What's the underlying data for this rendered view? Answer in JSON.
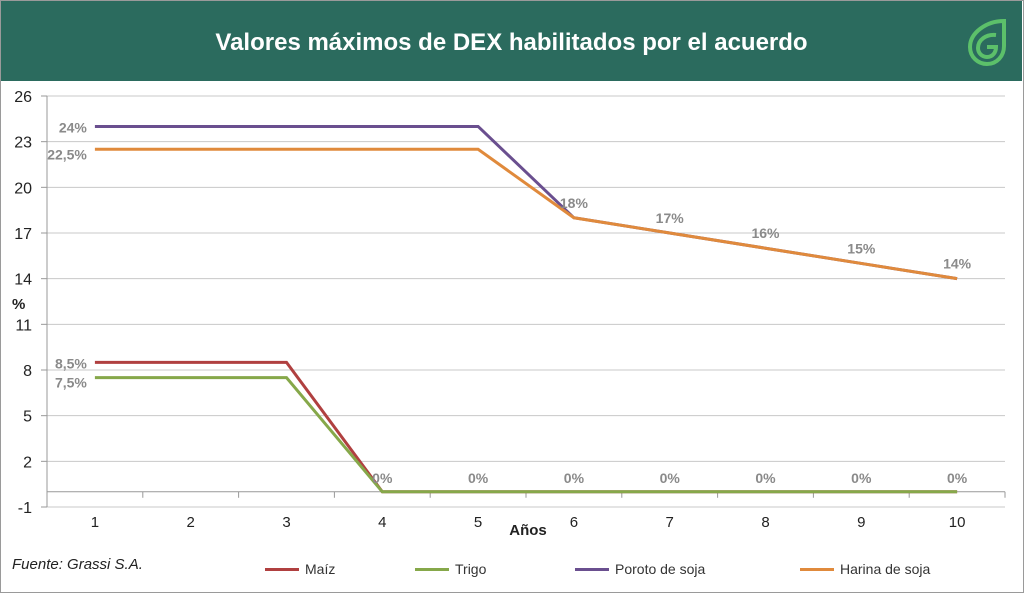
{
  "header": {
    "title": "Valores máximos de DEX habilitados por el acuerdo",
    "logo_icon": "leaf-g-logo"
  },
  "source": "Fuente: Grassi S.A.",
  "chart_data": {
    "type": "line",
    "title": "Valores máximos de DEX habilitados por el acuerdo",
    "xlabel": "Años",
    "ylabel": "%",
    "categories": [
      "1",
      "2",
      "3",
      "4",
      "5",
      "6",
      "7",
      "8",
      "9",
      "10"
    ],
    "ylim": [
      -1,
      26
    ],
    "yticks": [
      "26",
      "23",
      "20",
      "17",
      "14",
      "11",
      "8",
      "5",
      "2",
      "-1"
    ],
    "grid": true,
    "legend_position": "bottom",
    "series": [
      {
        "name": "Maíz",
        "color": "#b04040",
        "values": [
          8.5,
          8.5,
          8.5,
          0,
          0,
          0,
          0,
          0,
          0,
          0
        ]
      },
      {
        "name": "Trigo",
        "color": "#86a84a",
        "values": [
          7.5,
          7.5,
          7.5,
          0,
          0,
          0,
          0,
          0,
          0,
          0
        ]
      },
      {
        "name": "Poroto de soja",
        "color": "#6a4f8f",
        "values": [
          24,
          24,
          24,
          24,
          24,
          18,
          17,
          16,
          15,
          14
        ]
      },
      {
        "name": "Harina de soja",
        "color": "#e08a3c",
        "values": [
          22.5,
          22.5,
          22.5,
          22.5,
          22.5,
          18,
          17,
          16,
          15,
          14
        ]
      }
    ],
    "data_labels": [
      {
        "x": "1",
        "y": 24,
        "text": "24%"
      },
      {
        "x": "1",
        "y": 22.5,
        "text": "22,5%"
      },
      {
        "x": "1",
        "y": 8.5,
        "text": "8,5%"
      },
      {
        "x": "1",
        "y": 7.5,
        "text": "7,5%"
      },
      {
        "x": "6",
        "y": 18,
        "text": "18%"
      },
      {
        "x": "7",
        "y": 17,
        "text": "17%"
      },
      {
        "x": "8",
        "y": 16,
        "text": "16%"
      },
      {
        "x": "9",
        "y": 15,
        "text": "15%"
      },
      {
        "x": "10",
        "y": 14,
        "text": "14%"
      },
      {
        "x": "4",
        "y": 0,
        "text": "0%"
      },
      {
        "x": "5",
        "y": 0,
        "text": "0%"
      },
      {
        "x": "6",
        "y": 0,
        "text": "0%"
      },
      {
        "x": "7",
        "y": 0,
        "text": "0%"
      },
      {
        "x": "8",
        "y": 0,
        "text": "0%"
      },
      {
        "x": "9",
        "y": 0,
        "text": "0%"
      },
      {
        "x": "10",
        "y": 0,
        "text": "0%"
      }
    ]
  }
}
